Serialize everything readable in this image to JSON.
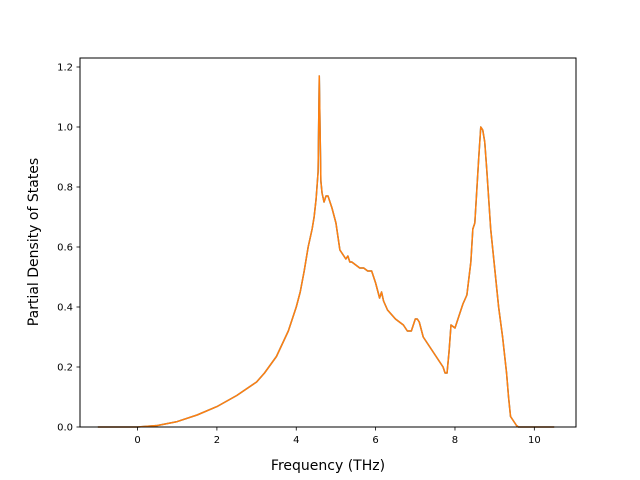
{
  "chart_data": {
    "type": "line",
    "title": "",
    "xlabel": "Frequency (THz)",
    "ylabel": "Partial Density of States",
    "xlim": [
      -1.45,
      11.05
    ],
    "ylim": [
      0.0,
      1.23
    ],
    "xticks": [
      0,
      2,
      4,
      6,
      8,
      10
    ],
    "yticks": [
      0.0,
      0.2,
      0.4,
      0.6,
      0.8,
      1.0,
      1.2
    ],
    "xtick_labels": [
      "0",
      "2",
      "4",
      "6",
      "8",
      "10"
    ],
    "ytick_labels": [
      "0.0",
      "0.2",
      "0.4",
      "0.6",
      "0.8",
      "1.0",
      "1.2"
    ],
    "grid": false,
    "legend": "none",
    "series": [
      {
        "color": "#1f77b4",
        "x": [
          -1.0,
          -0.5,
          0.0,
          0.5,
          1.0,
          1.5,
          2.0,
          2.5,
          3.0,
          3.2,
          3.5,
          3.8,
          4.0,
          4.1,
          4.2,
          4.3,
          4.4,
          4.45,
          4.5,
          4.55,
          4.58,
          4.62,
          4.65,
          4.7,
          4.75,
          4.8,
          4.9,
          5.0,
          5.1,
          5.2,
          5.25,
          5.3,
          5.35,
          5.4,
          5.5,
          5.6,
          5.7,
          5.8,
          5.9,
          6.0,
          6.1,
          6.15,
          6.2,
          6.3,
          6.5,
          6.7,
          6.8,
          6.9,
          7.0,
          7.05,
          7.1,
          7.2,
          7.4,
          7.6,
          7.7,
          7.75,
          7.8,
          7.85,
          7.9,
          8.0,
          8.1,
          8.2,
          8.3,
          8.4,
          8.45,
          8.5,
          8.6,
          8.65,
          8.7,
          8.75,
          8.8,
          8.9,
          9.0,
          9.1,
          9.2,
          9.3,
          9.35,
          9.4,
          9.5,
          9.55,
          9.6,
          10.0,
          10.5
        ],
        "y": [
          0.0,
          0.0,
          0.0,
          0.005,
          0.018,
          0.04,
          0.068,
          0.105,
          0.15,
          0.18,
          0.235,
          0.32,
          0.4,
          0.45,
          0.52,
          0.6,
          0.66,
          0.7,
          0.76,
          0.85,
          1.17,
          0.82,
          0.78,
          0.75,
          0.77,
          0.77,
          0.73,
          0.68,
          0.59,
          0.57,
          0.56,
          0.57,
          0.55,
          0.55,
          0.54,
          0.53,
          0.53,
          0.52,
          0.52,
          0.48,
          0.43,
          0.45,
          0.42,
          0.39,
          0.36,
          0.34,
          0.32,
          0.32,
          0.36,
          0.36,
          0.35,
          0.3,
          0.26,
          0.22,
          0.2,
          0.18,
          0.18,
          0.25,
          0.34,
          0.33,
          0.37,
          0.41,
          0.44,
          0.55,
          0.66,
          0.68,
          0.9,
          1.0,
          0.99,
          0.95,
          0.86,
          0.66,
          0.53,
          0.4,
          0.3,
          0.18,
          0.1,
          0.035,
          0.015,
          0.005,
          0.0,
          0.0,
          0.0
        ]
      },
      {
        "color": "#ff7f0e",
        "x": [
          -1.0,
          -0.5,
          0.0,
          0.5,
          1.0,
          1.5,
          2.0,
          2.5,
          3.0,
          3.2,
          3.5,
          3.8,
          4.0,
          4.1,
          4.2,
          4.3,
          4.4,
          4.45,
          4.5,
          4.55,
          4.58,
          4.62,
          4.65,
          4.7,
          4.75,
          4.8,
          4.9,
          5.0,
          5.1,
          5.2,
          5.25,
          5.3,
          5.35,
          5.4,
          5.5,
          5.6,
          5.7,
          5.8,
          5.9,
          6.0,
          6.1,
          6.15,
          6.2,
          6.3,
          6.5,
          6.7,
          6.8,
          6.9,
          7.0,
          7.05,
          7.1,
          7.2,
          7.4,
          7.6,
          7.7,
          7.75,
          7.8,
          7.85,
          7.9,
          8.0,
          8.1,
          8.2,
          8.3,
          8.4,
          8.45,
          8.5,
          8.6,
          8.65,
          8.7,
          8.75,
          8.8,
          8.9,
          9.0,
          9.1,
          9.2,
          9.3,
          9.35,
          9.4,
          9.5,
          9.55,
          9.6,
          10.0,
          10.5
        ],
        "y": [
          0.0,
          0.0,
          0.0,
          0.005,
          0.018,
          0.04,
          0.068,
          0.105,
          0.15,
          0.18,
          0.235,
          0.32,
          0.4,
          0.45,
          0.52,
          0.6,
          0.66,
          0.7,
          0.76,
          0.85,
          1.17,
          0.82,
          0.78,
          0.75,
          0.77,
          0.77,
          0.73,
          0.68,
          0.59,
          0.57,
          0.56,
          0.57,
          0.55,
          0.55,
          0.54,
          0.53,
          0.53,
          0.52,
          0.52,
          0.48,
          0.43,
          0.45,
          0.42,
          0.39,
          0.36,
          0.34,
          0.32,
          0.32,
          0.36,
          0.36,
          0.35,
          0.3,
          0.26,
          0.22,
          0.2,
          0.18,
          0.18,
          0.25,
          0.34,
          0.33,
          0.37,
          0.41,
          0.44,
          0.55,
          0.66,
          0.68,
          0.9,
          1.0,
          0.99,
          0.95,
          0.86,
          0.66,
          0.53,
          0.4,
          0.3,
          0.18,
          0.1,
          0.035,
          0.015,
          0.005,
          0.0,
          0.0,
          0.0
        ]
      }
    ]
  }
}
